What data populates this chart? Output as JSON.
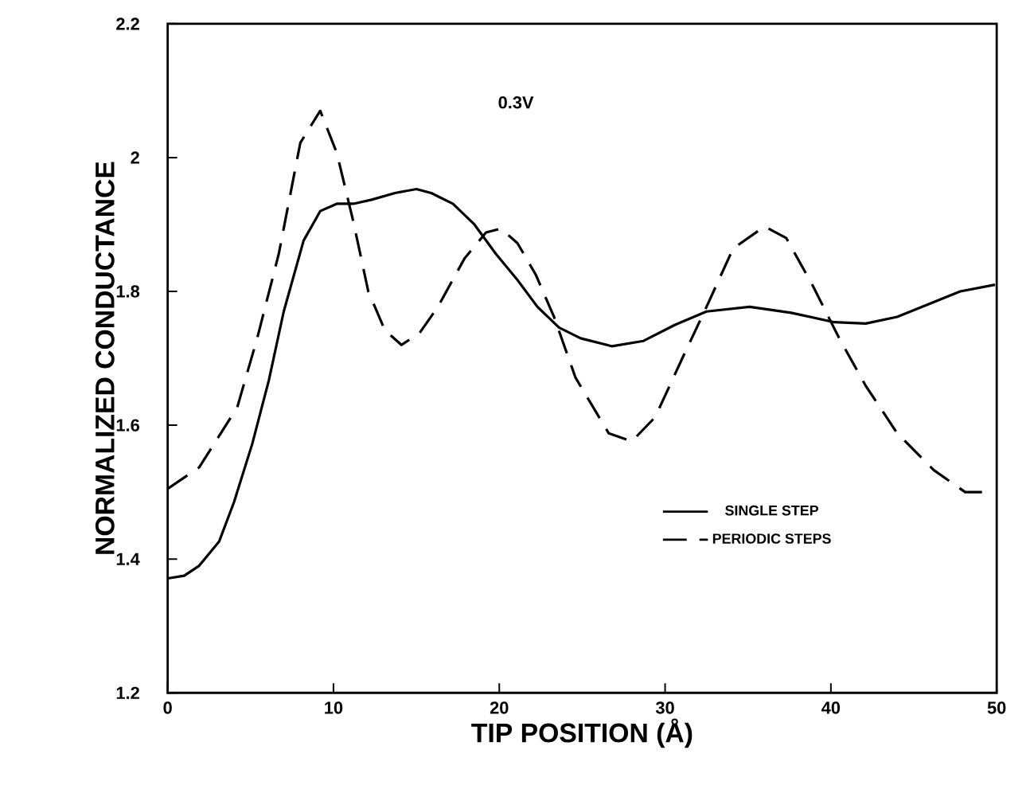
{
  "chart_data": {
    "type": "line",
    "xlabel": "TIP POSITION (Å)",
    "ylabel": "NORMALIZED CONDUCTANCE",
    "annotations": [
      "0.3V"
    ],
    "xlim": [
      0,
      50
    ],
    "ylim": [
      1.2,
      2.2
    ],
    "xticks": [
      0,
      10,
      20,
      30,
      40,
      50
    ],
    "yticks": [
      1.2,
      1.4,
      1.6,
      1.8,
      2,
      2.2
    ],
    "grid": false,
    "legend": "bottom right",
    "series": [
      {
        "name": "SINGLE STEP",
        "color": "#000000",
        "line_style": "solid",
        "x": [
          0,
          1.0,
          1.9,
          3.1,
          4.0,
          5.1,
          6.1,
          7.0,
          8.2,
          9.2,
          10.2,
          11.2,
          12.3,
          13.7,
          15.0,
          15.9,
          17.2,
          18.5,
          19.8,
          21.1,
          22.3,
          23.6,
          24.9,
          26.8,
          28.7,
          30.6,
          32.5,
          35.1,
          37.6,
          40.2,
          42.1,
          44.0,
          45.9,
          47.8,
          49.9
        ],
        "values": [
          1.371,
          1.375,
          1.39,
          1.426,
          1.485,
          1.572,
          1.667,
          1.77,
          1.876,
          1.92,
          1.931,
          1.931,
          1.937,
          1.947,
          1.953,
          1.947,
          1.931,
          1.9,
          1.856,
          1.817,
          1.777,
          1.746,
          1.73,
          1.718,
          1.726,
          1.75,
          1.77,
          1.777,
          1.768,
          1.754,
          1.752,
          1.762,
          1.781,
          1.8,
          1.81
        ]
      },
      {
        "name": "PERIODIC STEPS",
        "color": "#000000",
        "line_style": "dashed",
        "x": [
          0,
          1.9,
          4.2,
          5.4,
          6.7,
          8.0,
          9.2,
          10.2,
          11.2,
          12.1,
          13.1,
          14.1,
          15.2,
          16.3,
          17.9,
          19.2,
          20.1,
          21.1,
          22.2,
          23.3,
          24.6,
          26.6,
          28.0,
          29.4,
          31.0,
          32.5,
          34.1,
          36.0,
          37.3,
          38.9,
          40.5,
          42.1,
          44.0,
          46.2,
          48.1,
          49.7
        ],
        "values": [
          1.505,
          1.537,
          1.627,
          1.73,
          1.856,
          2.022,
          2.07,
          2.007,
          1.904,
          1.8,
          1.742,
          1.72,
          1.738,
          1.777,
          1.849,
          1.888,
          1.894,
          1.872,
          1.825,
          1.762,
          1.671,
          1.588,
          1.576,
          1.612,
          1.698,
          1.777,
          1.864,
          1.897,
          1.88,
          1.809,
          1.73,
          1.659,
          1.588,
          1.533,
          1.5,
          1.5
        ]
      }
    ]
  }
}
